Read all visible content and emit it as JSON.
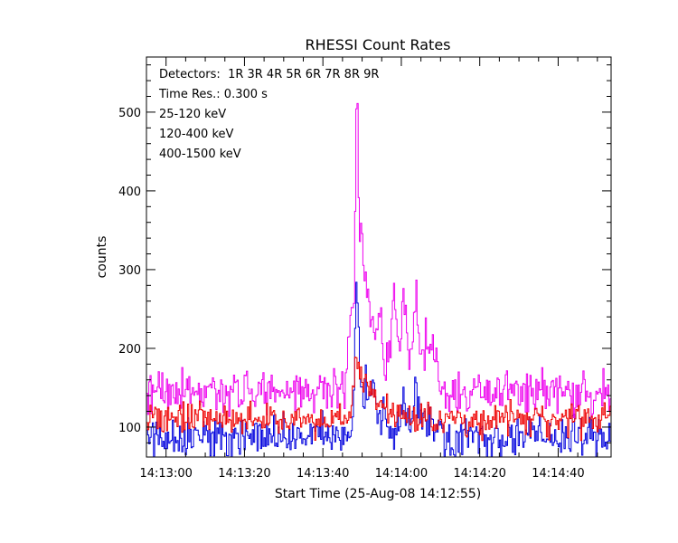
{
  "chart_data": {
    "type": "line",
    "title": "RHESSI Count Rates",
    "xlabel": "Start Time (25-Aug-08 14:12:55)",
    "ylabel": "counts",
    "x_ticks": [
      "14:13:00",
      "14:13:20",
      "14:13:40",
      "14:14:00",
      "14:14:20",
      "14:14:40"
    ],
    "x_tick_seconds_from_start": [
      5,
      25,
      45,
      65,
      85,
      105
    ],
    "xlim_seconds": [
      0,
      118.5
    ],
    "time_resolution_s": 0.3,
    "y_ticks": [
      100,
      200,
      300,
      400,
      500
    ],
    "ylim": [
      62,
      570
    ],
    "grid": false,
    "annotations": {
      "detectors": "Detectors:  1R 3R 4R 5R 6R 7R 8R 9R",
      "time_res": "Time Res.: 0.300 s"
    },
    "series": [
      {
        "name": "25-120 keV",
        "color": "#0000dd",
        "baseline": 88,
        "noise": 13,
        "peaks": [
          [
            53.5,
            165,
            0.5
          ],
          [
            55.2,
            60,
            1.2
          ],
          [
            57.5,
            55,
            0.8
          ],
          [
            60.8,
            40,
            0.5
          ],
          [
            65.5,
            35,
            0.6
          ],
          [
            68.5,
            45,
            0.5
          ],
          [
            70,
            25,
            3
          ]
        ]
      },
      {
        "name": "120-400 keV",
        "color": "#ee00ee",
        "baseline": 145,
        "noise": 14,
        "peaks": [
          [
            52.2,
            90,
            0.6
          ],
          [
            53.5,
            325,
            0.35
          ],
          [
            54.6,
            160,
            0.7
          ],
          [
            56.5,
            80,
            1.2
          ],
          [
            59.3,
            75,
            0.5
          ],
          [
            63,
            110,
            0.5
          ],
          [
            65.5,
            90,
            0.5
          ],
          [
            68.5,
            95,
            0.6
          ],
          [
            72,
            60,
            1.5
          ],
          [
            61,
            40,
            6
          ]
        ]
      },
      {
        "name": "400-1500 keV",
        "color": "#ee0000",
        "baseline": 110,
        "noise": 10,
        "peaks": [
          [
            53.5,
            55,
            0.8
          ],
          [
            56,
            30,
            2
          ],
          [
            60,
            15,
            4
          ]
        ]
      }
    ]
  }
}
